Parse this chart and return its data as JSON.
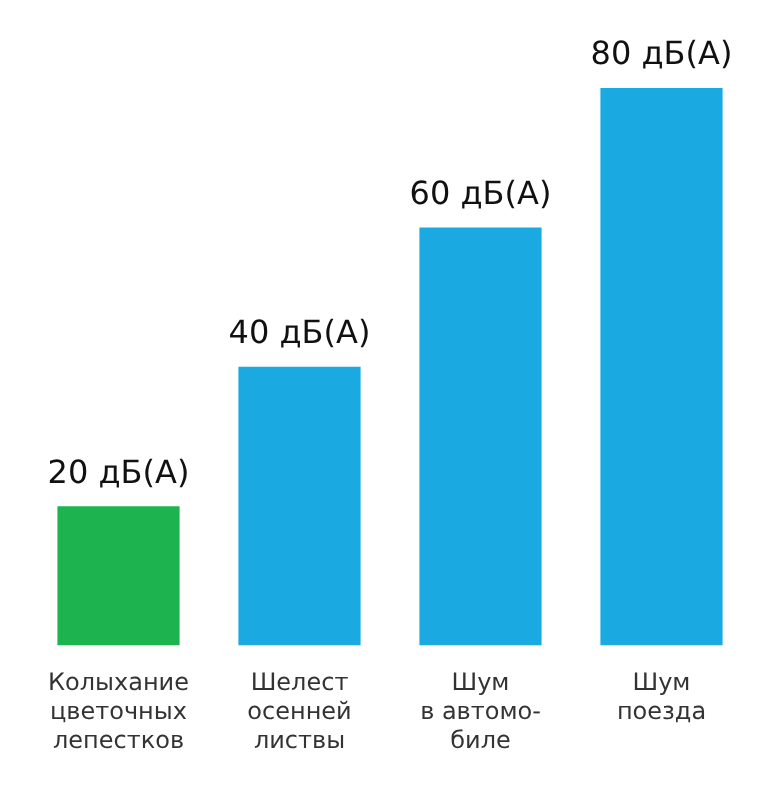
{
  "chart_data": {
    "type": "bar",
    "categories": [
      "Колыхание\nцветочных\nлепестков",
      "Шелест\nосенней\nлиствы",
      "Шум\nв автомо-\nбиле",
      "Шум\nпоезда"
    ],
    "values": [
      20,
      40,
      60,
      80
    ],
    "colors": [
      "#1db34f",
      "#1ba9e1",
      "#1ba9e1",
      "#1ba9e1"
    ],
    "value_labels": [
      "20 дБ(А)",
      "40 дБ(А)",
      "60 дБ(А)",
      "80 дБ(А)"
    ],
    "grid": false,
    "legend": false
  }
}
